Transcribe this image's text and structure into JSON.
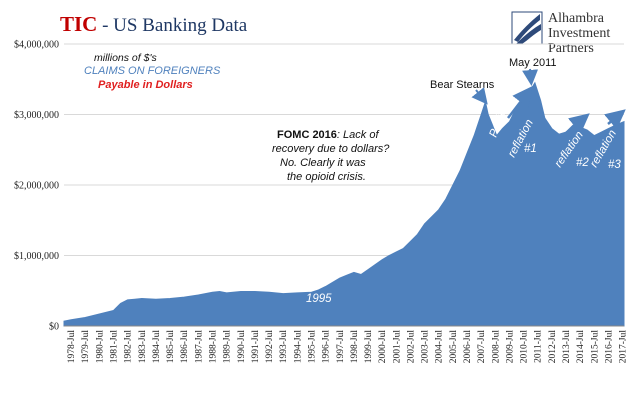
{
  "header": {
    "title_tic": "TIC",
    "title_rest": " - US Banking Data",
    "logo_lines": [
      "Alhambra",
      "Investment",
      "Partners"
    ]
  },
  "legend": {
    "line1": "millions of $'s",
    "line2": "CLAIMS ON FOREIGNERS",
    "line3": "Payable in Dollars"
  },
  "annotations": {
    "fomc_bold": "FOMC 2016",
    "fomc_l1_rest": ": Lack of",
    "fomc_l2": "recovery due to dollars?",
    "fomc_l3": "No. Clearly it was",
    "fomc_l4": "the opioid crisis.",
    "bear_stearns": "Bear Stearns",
    "may_2011": "May 2011",
    "panic": "Panic",
    "reflation1": "reflation",
    "reflation1_num": "#1",
    "reflation2": "reflation",
    "reflation2_num": "#2",
    "reflation3": "reflation",
    "reflation3_num": "#3",
    "y1995": "1995"
  },
  "colors": {
    "area": "#4f81bd",
    "title_tic": "#c00000",
    "title_rest": "#1f3864",
    "legend_blue": "#4f81bd",
    "legend_red": "#e02020",
    "arrow": "#4f81bd"
  },
  "chart_data": {
    "type": "area",
    "xlabel": "",
    "ylabel": "",
    "ylim": [
      0,
      4000000
    ],
    "grid": true,
    "y_ticks": [
      0,
      1000000,
      2000000,
      3000000,
      4000000
    ],
    "y_tick_labels": [
      "$0",
      "$1,000,000",
      "$2,000,000",
      "$3,000,000",
      "$4,000,000"
    ],
    "x_range": [
      1978.0,
      2017.6
    ],
    "x_tick_labels": [
      "1978-Jul",
      "1979-Jul",
      "1980-Jul",
      "1981-Jul",
      "1982-Jul",
      "1983-Jul",
      "1984-Jul",
      "1985-Jul",
      "1986-Jul",
      "1987-Jul",
      "1988-Jul",
      "1989-Jul",
      "1990-Jul",
      "1991-Jul",
      "1992-Jul",
      "1993-Jul",
      "1994-Jul",
      "1995-Jul",
      "1996-Jul",
      "1997-Jul",
      "1998-Jul",
      "1999-Jul",
      "2000-Jul",
      "2001-Jul",
      "2002-Jul",
      "2003-Jul",
      "2004-Jul",
      "2005-Jul",
      "2006-Jul",
      "2007-Jul",
      "2008-Jul",
      "2009-Jul",
      "2010-Jul",
      "2011-Jul",
      "2012-Jul",
      "2013-Jul",
      "2014-Jul",
      "2015-Jul",
      "2016-Jul",
      "2017-Jul"
    ],
    "series": [
      {
        "x": [
          1978.0,
          1978.5,
          1979.5,
          1980.5,
          1981.5,
          1982.0,
          1982.5,
          1983.0,
          1983.5,
          1984.5,
          1985.5,
          1986.5,
          1987.5,
          1988.5,
          1989.0,
          1989.5,
          1990.5,
          1991.5,
          1992.5,
          1993.5,
          1994.5,
          1995.5,
          1996.0,
          1996.5,
          1997.0,
          1997.5,
          1998.0,
          1998.5,
          1999.0,
          1999.5,
          2000.0,
          2000.5,
          2001.0,
          2001.5,
          2002.0,
          2002.5,
          2003.0,
          2003.5,
          2004.0,
          2004.5,
          2005.0,
          2005.5,
          2006.0,
          2006.5,
          2007.0,
          2007.5,
          2007.8,
          2008.0,
          2008.3,
          2008.6,
          2009.0,
          2009.5,
          2010.0,
          2010.5,
          2011.0,
          2011.3,
          2011.7,
          2012.0,
          2012.5,
          2013.0,
          2013.5,
          2014.0,
          2014.5,
          2015.0,
          2015.5,
          2016.0,
          2016.5,
          2017.0,
          2017.6
        ],
        "values": [
          70000,
          90000,
          120000,
          170000,
          220000,
          320000,
          370000,
          380000,
          390000,
          380000,
          390000,
          410000,
          440000,
          480000,
          490000,
          470000,
          490000,
          490000,
          480000,
          460000,
          470000,
          480000,
          510000,
          560000,
          620000,
          680000,
          720000,
          760000,
          730000,
          800000,
          870000,
          940000,
          1000000,
          1050000,
          1100000,
          1200000,
          1300000,
          1450000,
          1550000,
          1650000,
          1800000,
          2000000,
          2200000,
          2450000,
          2700000,
          3000000,
          3180000,
          3000000,
          2850000,
          2700000,
          2800000,
          2900000,
          3100000,
          3250000,
          3350000,
          3450000,
          3200000,
          2950000,
          2800000,
          2720000,
          2750000,
          2850000,
          2820000,
          2780000,
          2700000,
          2750000,
          2800000,
          2850000,
          2900000
        ]
      }
    ]
  }
}
